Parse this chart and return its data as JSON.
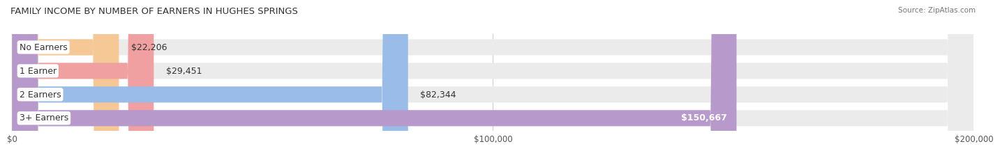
{
  "title": "FAMILY INCOME BY NUMBER OF EARNERS IN HUGHES SPRINGS",
  "source": "Source: ZipAtlas.com",
  "categories": [
    "No Earners",
    "1 Earner",
    "2 Earners",
    "3+ Earners"
  ],
  "values": [
    22206,
    29451,
    82344,
    150667
  ],
  "bar_colors": [
    "#f5c896",
    "#f0a0a0",
    "#99bce8",
    "#b899cc"
  ],
  "value_labels": [
    "$22,206",
    "$29,451",
    "$82,344",
    "$150,667"
  ],
  "value_inside": [
    false,
    false,
    false,
    true
  ],
  "xlim": [
    0,
    200000
  ],
  "xticks": [
    0,
    100000,
    200000
  ],
  "xtick_labels": [
    "$0",
    "$100,000",
    "$200,000"
  ],
  "bg_color": "#ffffff",
  "bar_bg_color": "#ebebeb",
  "title_fontsize": 9.5,
  "source_fontsize": 7.5,
  "label_fontsize": 9,
  "value_fontsize": 9,
  "bar_height": 0.68,
  "n_bars": 4
}
